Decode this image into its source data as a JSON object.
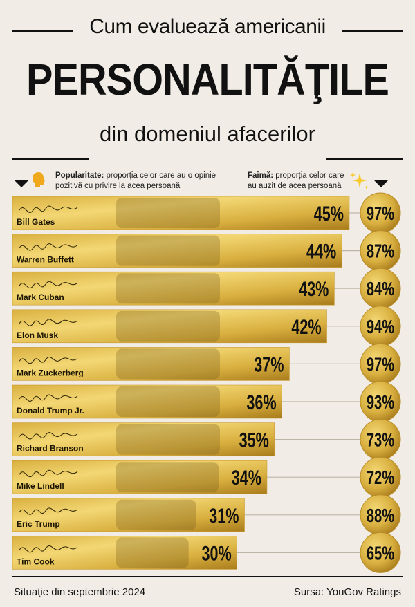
{
  "header": {
    "title_top": "Cum evaluează americanii",
    "title_main": "PERSONALITĂŢILE",
    "title_sub": "din domeniul afacerilor"
  },
  "legend": {
    "popularity_label": "Popularitate:",
    "popularity_text": "proporția celor care au o opinie pozitivă cu privire la acea persoană",
    "fame_label": "Faimă:",
    "fame_text": "proporția celor care au auzit de acea persoană"
  },
  "colors": {
    "gold_light": "#f3d774",
    "gold_mid": "#d9b040",
    "gold_dark": "#a97c1c",
    "background": "#f1ede6"
  },
  "chart_data": {
    "type": "bar",
    "categories": [
      "Bill Gates",
      "Warren Buffett",
      "Mark Cuban",
      "Elon Musk",
      "Mark Zuckerberg",
      "Donald Trump Jr.",
      "Richard Branson",
      "Mike Lindell",
      "Eric Trump",
      "Tim Cook"
    ],
    "series": [
      {
        "name": "Popularitate",
        "values": [
          45,
          44,
          43,
          42,
          37,
          36,
          35,
          34,
          31,
          30
        ],
        "labels": [
          "45%",
          "44%",
          "43%",
          "42%",
          "37%",
          "36%",
          "35%",
          "34%",
          "31%",
          "30%"
        ]
      },
      {
        "name": "Faimă",
        "values": [
          97,
          87,
          84,
          94,
          97,
          93,
          73,
          72,
          88,
          65
        ],
        "labels": [
          "97%",
          "87%",
          "84%",
          "94%",
          "97%",
          "93%",
          "73%",
          "72%",
          "88%",
          "65%"
        ]
      }
    ]
  },
  "footer": {
    "date": "Situaţie din septembrie 2024",
    "source": "Sursa: YouGov Ratings"
  }
}
